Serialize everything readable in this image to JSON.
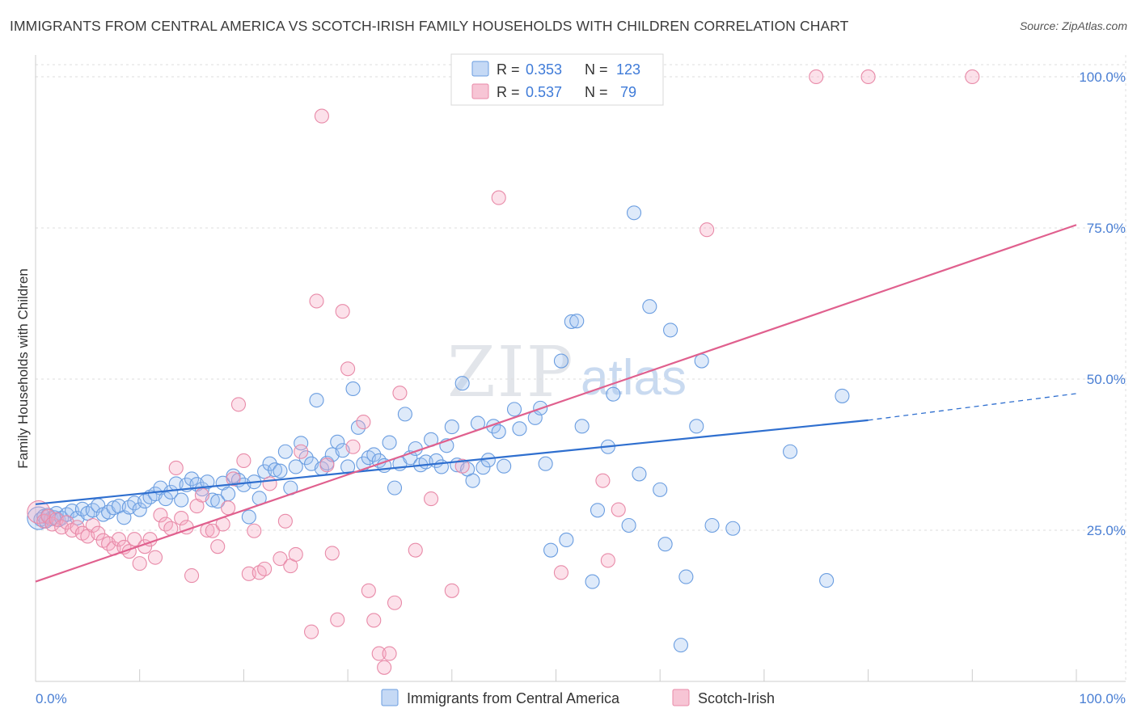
{
  "title": "IMMIGRANTS FROM CENTRAL AMERICA VS SCOTCH-IRISH FAMILY HOUSEHOLDS WITH CHILDREN CORRELATION CHART",
  "source": "Source: ZipAtlas.com",
  "watermark": {
    "zip": "ZIP",
    "atlas": "atlas"
  },
  "chart_data": {
    "type": "scatter",
    "title": "IMMIGRANTS FROM CENTRAL AMERICA VS SCOTCH-IRISH FAMILY HOUSEHOLDS WITH CHILDREN CORRELATION CHART",
    "xlabel": "",
    "ylabel": "Family Households with Children",
    "xlim": [
      0,
      100
    ],
    "ylim": [
      0,
      102
    ],
    "x_tick_labels": {
      "min": "0.0%",
      "max": "100.0%"
    },
    "y_ticks": [
      {
        "value": 25,
        "label": "25.0%"
      },
      {
        "value": 50,
        "label": "50.0%"
      },
      {
        "value": 75,
        "label": "75.0%"
      },
      {
        "value": 100,
        "label": "100.0%"
      }
    ],
    "legend": [
      {
        "name": "Immigrants from Central America",
        "r_label": "R =",
        "r": "0.353",
        "n_label": "N =",
        "n": "123",
        "color": "#6a9de0"
      },
      {
        "name": "Scotch-Irish",
        "r_label": "R =",
        "r": "0.537",
        "n_label": "N =",
        "n": " 79",
        "color": "#e88aa8"
      }
    ],
    "series": [
      {
        "name": "Immigrants from Central America",
        "color": "#6a9de0",
        "trend": {
          "x0": 0,
          "y0": 29.3,
          "x1": 80,
          "y1": 43.2,
          "dash_to_x": 100,
          "dash_to_y": 47.6,
          "color": "#2f6fcf"
        },
        "points": [
          [
            0.3,
            27.0
          ],
          [
            0.5,
            26.8
          ],
          [
            0.8,
            27.3
          ],
          [
            1.0,
            26.5
          ],
          [
            1.2,
            27.5
          ],
          [
            1.5,
            26.9
          ],
          [
            1.8,
            27.1
          ],
          [
            2.0,
            27.8
          ],
          [
            2.2,
            26.7
          ],
          [
            2.5,
            27.0
          ],
          [
            3.0,
            27.6
          ],
          [
            3.5,
            28.2
          ],
          [
            4.0,
            27.0
          ],
          [
            4.5,
            28.5
          ],
          [
            5.0,
            27.8
          ],
          [
            5.5,
            28.3
          ],
          [
            6.0,
            29.1
          ],
          [
            6.5,
            27.6
          ],
          [
            7.0,
            28.0
          ],
          [
            7.5,
            28.7
          ],
          [
            8.0,
            29.0
          ],
          [
            8.5,
            27.1
          ],
          [
            9.0,
            28.8
          ],
          [
            9.5,
            29.5
          ],
          [
            10.0,
            28.4
          ],
          [
            10.5,
            29.8
          ],
          [
            11.0,
            30.5
          ],
          [
            11.5,
            31.0
          ],
          [
            12.0,
            32.0
          ],
          [
            12.5,
            30.2
          ],
          [
            13.0,
            31.3
          ],
          [
            13.5,
            32.7
          ],
          [
            14.0,
            30.0
          ],
          [
            14.5,
            32.5
          ],
          [
            15.0,
            33.5
          ],
          [
            15.5,
            32.6
          ],
          [
            16.0,
            31.8
          ],
          [
            16.5,
            33.0
          ],
          [
            17.0,
            30.0
          ],
          [
            17.5,
            29.8
          ],
          [
            18.0,
            32.8
          ],
          [
            18.5,
            31.0
          ],
          [
            19.0,
            34.0
          ],
          [
            19.5,
            33.3
          ],
          [
            20.0,
            32.5
          ],
          [
            20.5,
            27.2
          ],
          [
            21.0,
            33.0
          ],
          [
            21.5,
            30.3
          ],
          [
            22.0,
            34.7
          ],
          [
            22.5,
            36.0
          ],
          [
            23.0,
            35.0
          ],
          [
            23.5,
            34.8
          ],
          [
            24.0,
            38.0
          ],
          [
            24.5,
            32.0
          ],
          [
            25.0,
            35.5
          ],
          [
            25.5,
            39.4
          ],
          [
            26.0,
            37.0
          ],
          [
            26.5,
            36.0
          ],
          [
            27.0,
            46.5
          ],
          [
            27.5,
            35.2
          ],
          [
            28.0,
            36.1
          ],
          [
            28.5,
            37.5
          ],
          [
            29.0,
            39.6
          ],
          [
            29.5,
            38.2
          ],
          [
            30.0,
            35.5
          ],
          [
            30.5,
            48.4
          ],
          [
            31.0,
            42.0
          ],
          [
            31.5,
            36.0
          ],
          [
            32.0,
            37.0
          ],
          [
            32.5,
            37.5
          ],
          [
            33.0,
            36.5
          ],
          [
            33.5,
            35.7
          ],
          [
            34.0,
            39.5
          ],
          [
            34.5,
            32.0
          ],
          [
            35.0,
            36.0
          ],
          [
            35.5,
            44.2
          ],
          [
            36.0,
            37.0
          ],
          [
            36.5,
            38.5
          ],
          [
            37.0,
            35.8
          ],
          [
            37.5,
            36.3
          ],
          [
            38.0,
            40.0
          ],
          [
            38.5,
            36.5
          ],
          [
            39.0,
            35.5
          ],
          [
            39.5,
            39.0
          ],
          [
            40.0,
            42.1
          ],
          [
            40.5,
            35.8
          ],
          [
            41.0,
            49.3
          ],
          [
            41.5,
            35.1
          ],
          [
            42.0,
            33.2
          ],
          [
            42.5,
            42.7
          ],
          [
            43.0,
            35.4
          ],
          [
            43.5,
            36.6
          ],
          [
            44.0,
            42.2
          ],
          [
            44.5,
            41.3
          ],
          [
            45.0,
            35.6
          ],
          [
            46.0,
            45.0
          ],
          [
            46.5,
            41.8
          ],
          [
            48.0,
            43.6
          ],
          [
            48.5,
            45.2
          ],
          [
            49.0,
            36.0
          ],
          [
            49.5,
            21.7
          ],
          [
            50.5,
            53.0
          ],
          [
            51.0,
            23.4
          ],
          [
            51.5,
            59.5
          ],
          [
            52.0,
            59.6
          ],
          [
            52.5,
            42.2
          ],
          [
            53.5,
            16.5
          ],
          [
            54.0,
            28.3
          ],
          [
            55.0,
            38.8
          ],
          [
            55.5,
            47.5
          ],
          [
            57.0,
            25.8
          ],
          [
            57.5,
            77.5
          ],
          [
            58.0,
            34.3
          ],
          [
            59.0,
            62.0
          ],
          [
            60.0,
            31.7
          ],
          [
            60.5,
            22.7
          ],
          [
            61.0,
            58.1
          ],
          [
            62.0,
            6.0
          ],
          [
            62.5,
            17.3
          ],
          [
            63.5,
            42.2
          ],
          [
            64.0,
            53.0
          ],
          [
            65.0,
            25.8
          ],
          [
            67.0,
            25.3
          ],
          [
            72.5,
            38.0
          ],
          [
            76.0,
            16.7
          ],
          [
            77.5,
            47.2
          ]
        ]
      },
      {
        "name": "Scotch-Irish",
        "color": "#e88aa8",
        "trend": {
          "x0": 0,
          "y0": 16.5,
          "x1": 100,
          "y1": 75.5,
          "color": "#e0608e"
        },
        "points": [
          [
            0.3,
            28.0
          ],
          [
            0.8,
            26.5
          ],
          [
            1.2,
            27.3
          ],
          [
            1.6,
            26.0
          ],
          [
            2.0,
            26.8
          ],
          [
            2.5,
            25.5
          ],
          [
            3.0,
            26.3
          ],
          [
            3.5,
            25.0
          ],
          [
            4.0,
            25.5
          ],
          [
            4.5,
            24.5
          ],
          [
            5.0,
            24.0
          ],
          [
            5.5,
            25.8
          ],
          [
            6.0,
            24.5
          ],
          [
            6.5,
            23.3
          ],
          [
            7.0,
            22.8
          ],
          [
            7.5,
            22.0
          ],
          [
            8.0,
            23.5
          ],
          [
            8.5,
            22.2
          ],
          [
            9.0,
            21.5
          ],
          [
            9.5,
            23.5
          ],
          [
            10.0,
            19.5
          ],
          [
            10.5,
            22.3
          ],
          [
            11.0,
            23.5
          ],
          [
            11.5,
            20.5
          ],
          [
            12.0,
            27.5
          ],
          [
            12.5,
            26.0
          ],
          [
            13.0,
            25.3
          ],
          [
            13.5,
            35.3
          ],
          [
            14.0,
            27.0
          ],
          [
            14.5,
            25.5
          ],
          [
            15.0,
            17.5
          ],
          [
            15.5,
            29.0
          ],
          [
            16.0,
            30.8
          ],
          [
            16.5,
            25.0
          ],
          [
            17.0,
            24.9
          ],
          [
            17.5,
            22.3
          ],
          [
            18.0,
            26.0
          ],
          [
            18.5,
            28.7
          ],
          [
            19.0,
            33.5
          ],
          [
            19.5,
            45.8
          ],
          [
            20.0,
            36.5
          ],
          [
            20.5,
            17.8
          ],
          [
            21.0,
            24.9
          ],
          [
            21.5,
            18.0
          ],
          [
            22.0,
            18.6
          ],
          [
            22.5,
            32.7
          ],
          [
            23.5,
            20.3
          ],
          [
            24.0,
            26.5
          ],
          [
            24.5,
            19.1
          ],
          [
            25.0,
            21.0
          ],
          [
            25.5,
            38.0
          ],
          [
            26.5,
            8.2
          ],
          [
            27.0,
            62.9
          ],
          [
            27.5,
            93.5
          ],
          [
            28.0,
            35.8
          ],
          [
            28.5,
            21.2
          ],
          [
            29.0,
            10.2
          ],
          [
            29.5,
            61.2
          ],
          [
            30.0,
            51.7
          ],
          [
            30.5,
            38.8
          ],
          [
            31.5,
            42.9
          ],
          [
            32.0,
            15.0
          ],
          [
            32.5,
            10.1
          ],
          [
            33.0,
            4.6
          ],
          [
            33.5,
            2.3
          ],
          [
            34.0,
            4.6
          ],
          [
            34.5,
            13.0
          ],
          [
            35.0,
            47.7
          ],
          [
            36.5,
            21.7
          ],
          [
            38.0,
            30.2
          ],
          [
            40.0,
            15.0
          ],
          [
            41.0,
            35.6
          ],
          [
            44.5,
            80.0
          ],
          [
            50.5,
            18.0
          ],
          [
            54.5,
            33.2
          ],
          [
            55.0,
            20.0
          ],
          [
            56.0,
            28.4
          ],
          [
            64.5,
            74.7
          ],
          [
            80.0,
            100.0
          ]
        ],
        "extra_points_at_top": [
          [
            75.0,
            100.0
          ],
          [
            90.0,
            100.0
          ]
        ]
      }
    ]
  }
}
